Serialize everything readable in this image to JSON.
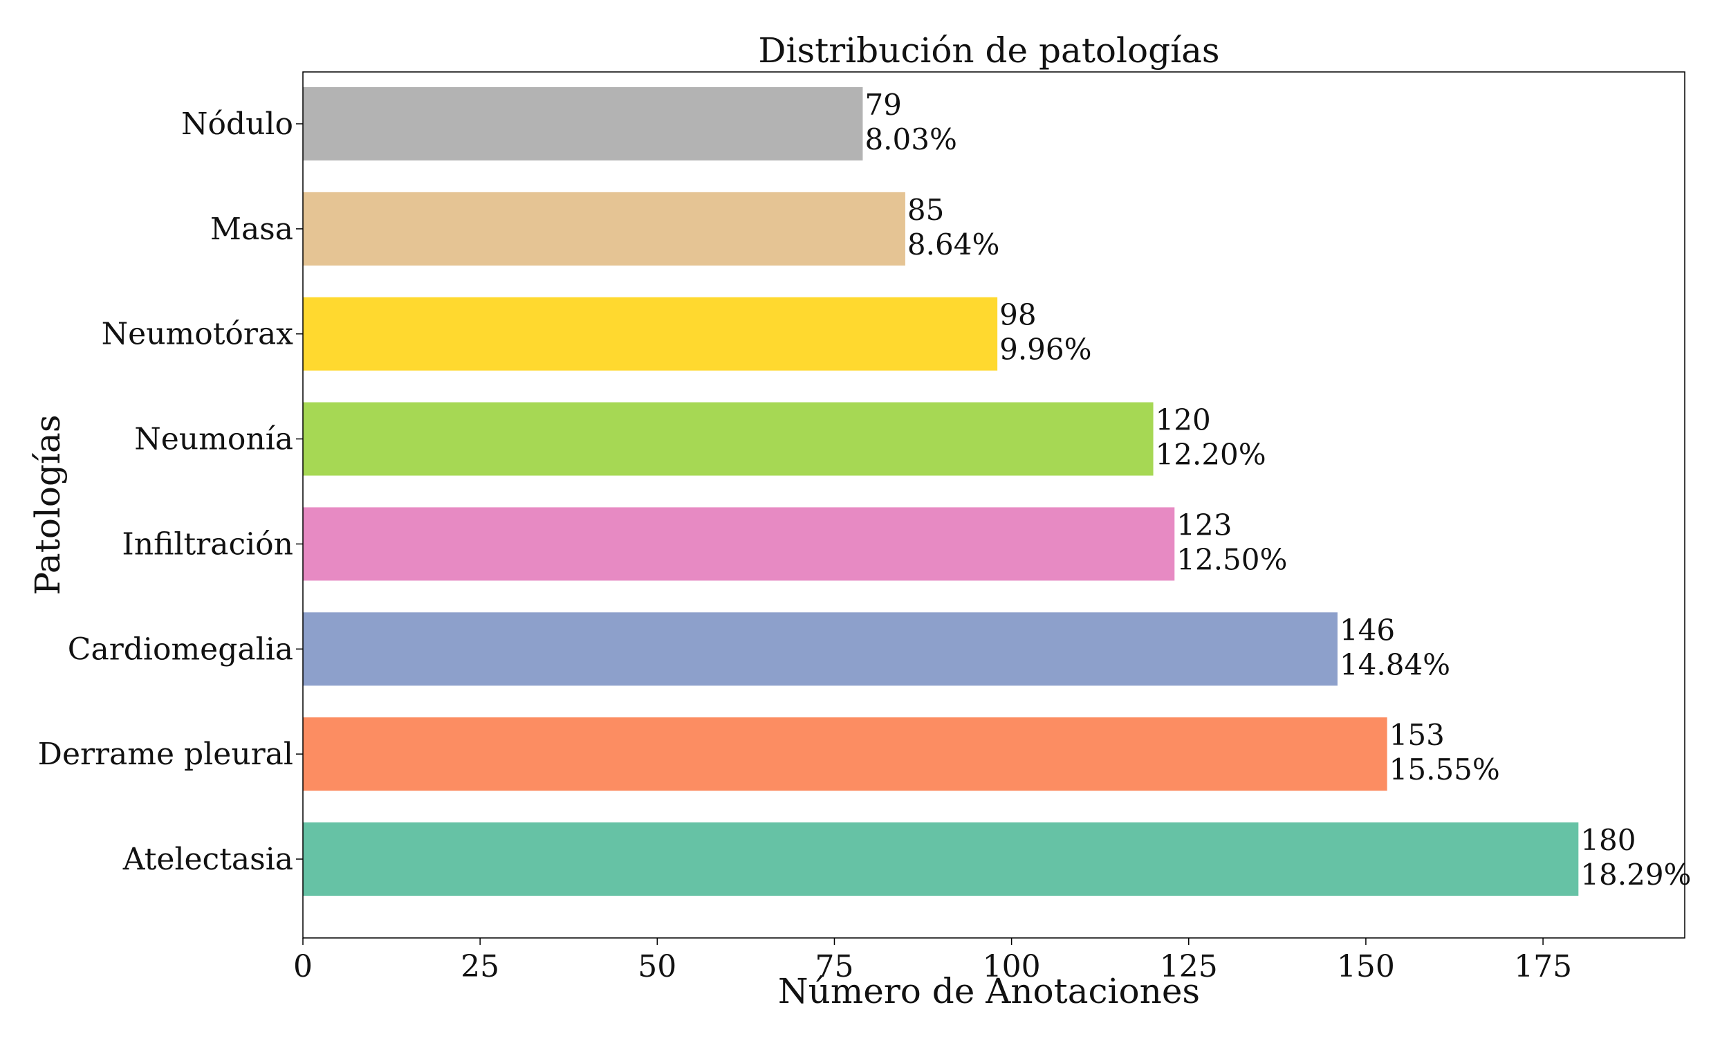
{
  "chart_data": {
    "type": "bar",
    "orientation": "horizontal",
    "title": "Distribución de patologías",
    "xlabel": "Número de Anotaciones",
    "ylabel": "Patologías",
    "xlim": [
      0,
      195
    ],
    "xticks": [
      0,
      25,
      50,
      75,
      100,
      125,
      150,
      175
    ],
    "grid": false,
    "legend": "none",
    "categories": [
      "Atelectasia",
      "Derrame pleural",
      "Cardiomegalia",
      "Infiltración",
      "Neumonía",
      "Neumotórax",
      "Masa",
      "Nódulo"
    ],
    "values": [
      180,
      153,
      146,
      123,
      120,
      98,
      85,
      79
    ],
    "percent_labels": [
      "18.29%",
      "15.55%",
      "14.84%",
      "12.50%",
      "12.20%",
      "9.96%",
      "8.64%",
      "8.03%"
    ],
    "colors": [
      "#66c2a5",
      "#fc8d62",
      "#8da0cb",
      "#e78ac3",
      "#a6d854",
      "#ffd92f",
      "#e5c494",
      "#b3b3b3"
    ]
  }
}
